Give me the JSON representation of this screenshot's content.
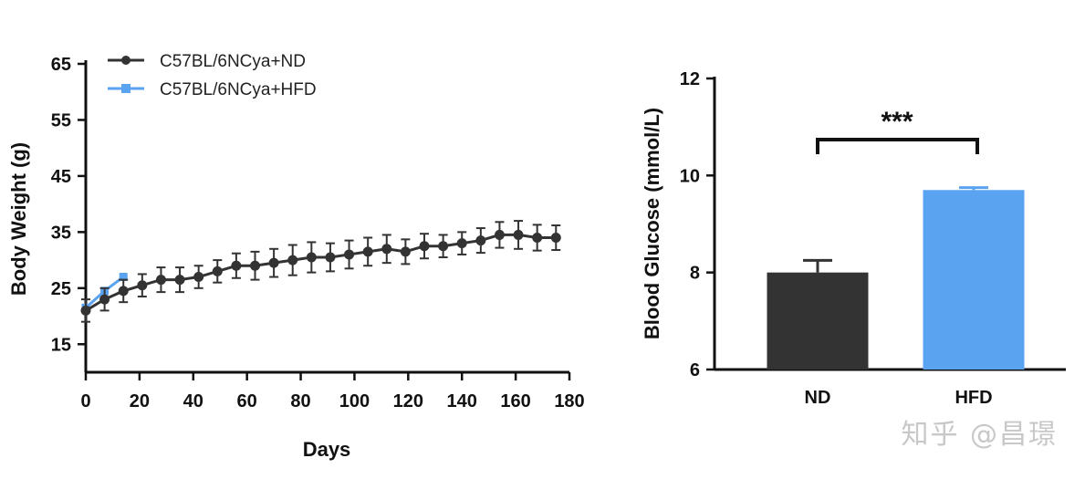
{
  "chart_data": [
    {
      "type": "line",
      "xlabel": "Days",
      "ylabel": "Body Weight (g)",
      "xlim": [
        0,
        180
      ],
      "ylim": [
        10,
        65
      ],
      "xticks": [
        0,
        20,
        40,
        60,
        80,
        100,
        120,
        140,
        160,
        180
      ],
      "yticks": [
        15,
        25,
        35,
        45,
        55,
        65
      ],
      "legend_position": "top-left",
      "series": [
        {
          "name": "C57BL/6NCya+ND",
          "color": "#333333",
          "marker": "circle",
          "x": [
            0,
            7,
            14,
            21,
            28,
            35,
            42,
            49,
            56,
            63,
            70,
            77,
            84,
            91,
            98,
            105,
            112,
            119,
            126,
            133,
            140,
            147,
            154,
            161,
            168,
            175
          ],
          "y": [
            21,
            23,
            24.5,
            25.5,
            26.5,
            26.5,
            27,
            28,
            29,
            29,
            29.5,
            30,
            30.5,
            30.5,
            31,
            31.5,
            32,
            31.5,
            32.5,
            32.5,
            33,
            33.5,
            34.5,
            34.5,
            34,
            34
          ],
          "err": [
            2,
            2,
            2,
            2,
            2.2,
            2.2,
            2,
            2,
            2.2,
            2.5,
            2.5,
            2.7,
            2.7,
            2.5,
            2.5,
            2.5,
            2.5,
            2.2,
            2.2,
            2,
            2,
            2.2,
            2.3,
            2.5,
            2.3,
            2.2
          ]
        },
        {
          "name": "C57BL/6NCya+HFD",
          "color": "#5aa3f0",
          "marker": "square",
          "x": [
            0,
            7,
            14
          ],
          "y": [
            21.5,
            24.5,
            27
          ]
        }
      ]
    },
    {
      "type": "bar",
      "categories": [
        "ND",
        "HFD"
      ],
      "values": [
        8.0,
        9.7
      ],
      "errors": [
        0.25,
        0.05
      ],
      "colors": [
        "#333333",
        "#5aa3f0"
      ],
      "ylabel": "Blood Glucose (mmol/L)",
      "ylim": [
        6,
        12
      ],
      "yticks": [
        6,
        8,
        10,
        12
      ],
      "significance": "***"
    }
  ],
  "watermark": "知乎 @昌璟"
}
